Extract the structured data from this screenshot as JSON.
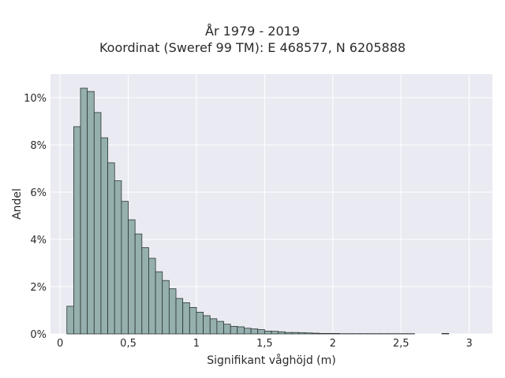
{
  "chart_data": {
    "type": "bar",
    "title_lines": [
      "År 1979 - 2019",
      "Koordinat (Sweref 99 TM): E 468577, N 6205888"
    ],
    "xlabel": "Signifikant våghöjd (m)",
    "ylabel": "Andel",
    "xlim": [
      -0.07,
      3.17
    ],
    "ylim": [
      0,
      0.11
    ],
    "x_ticks": [
      0,
      0.5,
      1,
      1.5,
      2,
      2.5,
      3
    ],
    "x_tick_labels": [
      "0",
      "0,5",
      "1",
      "1,5",
      "2",
      "2,5",
      "3"
    ],
    "y_ticks": [
      0,
      0.02,
      0.04,
      0.06,
      0.08,
      0.1
    ],
    "y_tick_labels": [
      "0%",
      "2%",
      "4%",
      "6%",
      "8%",
      "10%"
    ],
    "grid": true,
    "bin_width": 0.05,
    "bin_starts": [
      0.05,
      0.1,
      0.15,
      0.2,
      0.25,
      0.3,
      0.35,
      0.4,
      0.45,
      0.5,
      0.55,
      0.6,
      0.65,
      0.7,
      0.75,
      0.8,
      0.85,
      0.9,
      0.95,
      1.0,
      1.05,
      1.1,
      1.15,
      1.2,
      1.25,
      1.3,
      1.35,
      1.4,
      1.45,
      1.5,
      1.55,
      1.6,
      1.65,
      1.7,
      1.75,
      1.8,
      1.85,
      1.9,
      1.95,
      2.0,
      2.05,
      2.1,
      2.15,
      2.2,
      2.25,
      2.3,
      2.35,
      2.4,
      2.45,
      2.5,
      2.55,
      2.8
    ],
    "values": [
      0.0117,
      0.0877,
      0.104,
      0.1026,
      0.0937,
      0.083,
      0.0724,
      0.0648,
      0.0561,
      0.0483,
      0.0423,
      0.0365,
      0.032,
      0.0263,
      0.0226,
      0.0191,
      0.015,
      0.0132,
      0.0112,
      0.0092,
      0.0077,
      0.0064,
      0.0053,
      0.0041,
      0.0032,
      0.003,
      0.0024,
      0.0021,
      0.0018,
      0.0012,
      0.0011,
      0.0009,
      0.0006,
      0.0006,
      0.0005,
      0.0004,
      0.0003,
      0.0002,
      0.0002,
      0.0002,
      0.0001,
      0.0001,
      0.0001,
      0.0001,
      0.0001,
      0.0001,
      0.0001,
      0.0001,
      0.0001,
      0.0001,
      0.0001,
      0.0002
    ],
    "bar_color": "#95b0ae",
    "bar_edge_color": "#2b3534",
    "plot_background": "#eaeaf2",
    "grid_color": "#ffffff"
  }
}
